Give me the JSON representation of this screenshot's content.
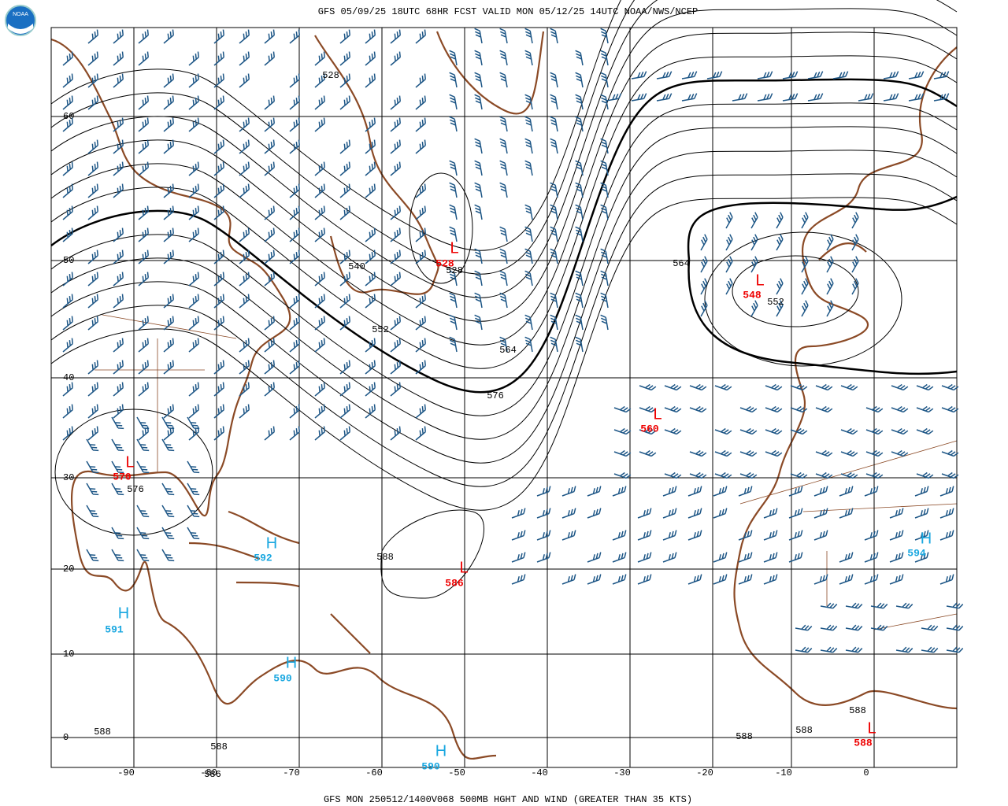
{
  "header": {
    "logo": "NOAA",
    "title": "GFS 05/09/25 18UTC 68HR FCST VALID MON 05/12/25 14UTC NOAA/NWS/NCEP"
  },
  "footer": "GFS MON 250512/1400V068 500MB HGHT AND WIND (GREATER THAN 35 KTS)",
  "lat_labels": [
    60,
    50,
    40,
    30,
    20,
    10,
    0
  ],
  "lon_labels": [
    -90,
    -80,
    -70,
    -60,
    -50,
    -40,
    -30,
    -20,
    -10,
    0
  ],
  "contour_labels": [
    528,
    540,
    528,
    552,
    564,
    576,
    564,
    552,
    576,
    588,
    588,
    588,
    586,
    588,
    588,
    588
  ],
  "centers": [
    {
      "kind": "L",
      "value": 528
    },
    {
      "kind": "L",
      "value": 548
    },
    {
      "kind": "L",
      "value": 560
    },
    {
      "kind": "L",
      "value": 570
    },
    {
      "kind": "L",
      "value": 586
    },
    {
      "kind": "L",
      "value": 588
    },
    {
      "kind": "H",
      "value": 592
    },
    {
      "kind": "H",
      "value": 591
    },
    {
      "kind": "H",
      "value": 590
    },
    {
      "kind": "H",
      "value": 590
    },
    {
      "kind": "H",
      "value": 594
    }
  ]
}
